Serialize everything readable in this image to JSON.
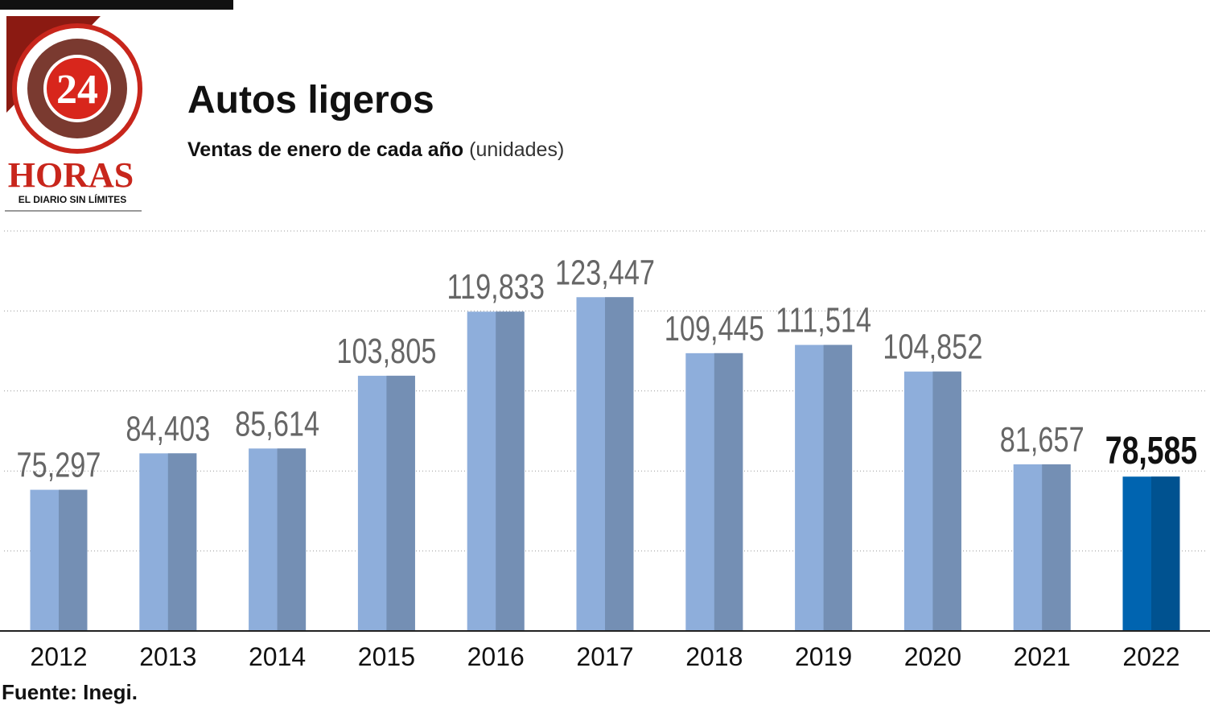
{
  "logo": {
    "number": "24",
    "name": "HORAS",
    "tagline": "EL DIARIO SIN LÍMITES"
  },
  "chart_data": {
    "type": "bar",
    "title": "Autos ligeros",
    "subtitle": "Ventas de enero de cada año",
    "subtitle_unit": "(unidades)",
    "categories": [
      "2012",
      "2013",
      "2014",
      "2015",
      "2016",
      "2017",
      "2018",
      "2019",
      "2020",
      "2021",
      "2022"
    ],
    "values": [
      75297,
      84403,
      85614,
      103805,
      119833,
      123447,
      109445,
      111514,
      104852,
      81657,
      78585
    ],
    "value_labels": [
      "75,297",
      "84,403",
      "85,614",
      "103,805",
      "119,833",
      "123,447",
      "109,445",
      "111,514",
      "104,852",
      "81,657",
      "78,585"
    ],
    "colors": [
      "#8eaedb",
      "#8eaedb",
      "#8eaedb",
      "#8eaedb",
      "#8eaedb",
      "#8eaedb",
      "#8eaedb",
      "#8eaedb",
      "#8eaedb",
      "#8eaedb",
      "#0064b0"
    ],
    "ylim": [
      40000,
      140000
    ],
    "yticks": [
      40000,
      60000,
      80000,
      100000,
      120000,
      140000
    ],
    "grid": true,
    "source": "Fuente: Inegi."
  }
}
